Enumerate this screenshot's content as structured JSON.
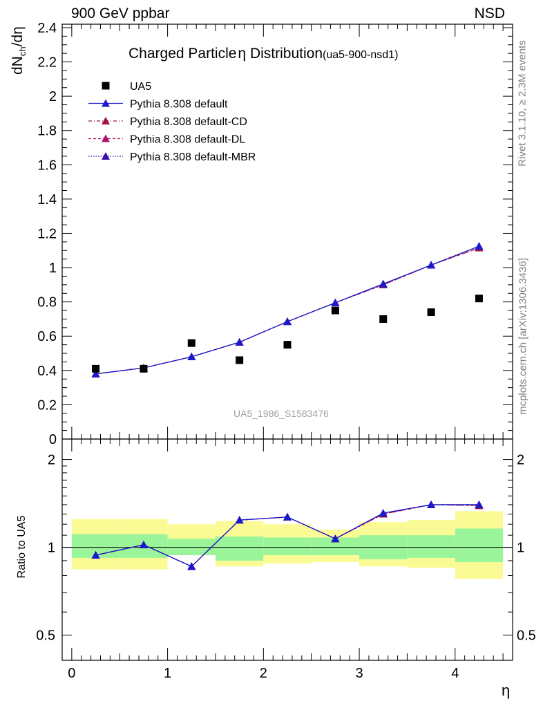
{
  "header": {
    "left": "900 GeV ppbar",
    "right": "NSD"
  },
  "title": {
    "main": "Charged Particle",
    "eta": "η",
    "rest": "Distribution",
    "tag": "(ua5-900-nsd1)"
  },
  "ylabel_top": {
    "dn": "dN",
    "sub": "ch",
    "rest": "/dη"
  },
  "ylabel_bottom": "Ratio to UA5",
  "xlabel": "η",
  "side_text": {
    "rivet": "Rivet 3.1.10, ≥ 2.3M events",
    "mcplots": "mcplots.cern.ch [arXiv:1306.3436]"
  },
  "watermark": "UA5_1986_S1583476",
  "legend": [
    {
      "label": "UA5",
      "marker": "square",
      "color": "#000000",
      "line": "none"
    },
    {
      "label": "Pythia 8.308 default",
      "marker": "triangle",
      "color": "#1a1acc",
      "line": "solid"
    },
    {
      "label": "Pythia 8.308 default-CD",
      "marker": "triangle",
      "color": "#a01040",
      "line": "dashdot"
    },
    {
      "label": "Pythia 8.308 default-DL",
      "marker": "triangle",
      "color": "#b0106a",
      "line": "dashed"
    },
    {
      "label": "Pythia 8.308 default-MBR",
      "marker": "triangle",
      "color": "#3a10b0",
      "line": "dotted"
    }
  ],
  "chart_data": [
    {
      "type": "scatter",
      "panel": "main",
      "xlim": [
        -0.1,
        4.6
      ],
      "ylim": [
        0,
        2.42
      ],
      "yticks": [
        0,
        0.2,
        0.4,
        0.6,
        0.8,
        1,
        1.2,
        1.4,
        1.6,
        1.8,
        2,
        2.2,
        2.4
      ],
      "ytick_labels": [
        "0",
        "0.2",
        "0.4",
        "0.6",
        "0.8",
        "1",
        "1.2",
        "1.4",
        "1.6",
        "1.8",
        "2",
        "2.2",
        "2.4"
      ],
      "x": [
        0.25,
        0.75,
        1.25,
        1.75,
        2.25,
        2.75,
        3.25,
        3.75,
        4.25
      ],
      "series": [
        {
          "name": "UA5",
          "values": [
            0.41,
            0.41,
            0.56,
            0.46,
            0.55,
            0.75,
            0.7,
            0.74,
            0.82
          ]
        },
        {
          "name": "Pythia 8.308 default",
          "values": [
            0.38,
            0.415,
            0.48,
            0.565,
            0.685,
            0.795,
            0.905,
            1.015,
            1.125
          ]
        },
        {
          "name": "Pythia 8.308 default-CD",
          "values": [
            0.38,
            0.415,
            0.48,
            0.565,
            0.685,
            0.795,
            0.9,
            1.015,
            1.115
          ]
        },
        {
          "name": "Pythia 8.308 default-DL",
          "values": [
            0.38,
            0.415,
            0.48,
            0.565,
            0.685,
            0.795,
            0.9,
            1.015,
            1.115
          ]
        },
        {
          "name": "Pythia 8.308 default-MBR",
          "values": [
            0.38,
            0.415,
            0.48,
            0.565,
            0.685,
            0.795,
            0.905,
            1.015,
            1.125
          ]
        }
      ]
    },
    {
      "type": "scatter",
      "panel": "ratio",
      "xlim": [
        -0.1,
        4.6
      ],
      "ylim": [
        0.41,
        2.35
      ],
      "log_y": true,
      "yticks": [
        0.5,
        1,
        2
      ],
      "ytick_labels": [
        "0.5",
        "1",
        "2"
      ],
      "xticks": [
        0,
        1,
        2,
        3,
        4
      ],
      "xtick_labels": [
        "0",
        "1",
        "2",
        "3",
        "4"
      ],
      "x": [
        0.25,
        0.75,
        1.25,
        1.75,
        2.25,
        2.75,
        3.25,
        3.75,
        4.25
      ],
      "bin_edges": [
        0,
        0.5,
        1,
        1.5,
        2,
        2.5,
        3,
        3.5,
        4,
        4.5
      ],
      "band_inner": [
        [
          0.92,
          1.11
        ],
        [
          0.92,
          1.11
        ],
        [
          0.94,
          1.07
        ],
        [
          0.9,
          1.09
        ],
        [
          0.94,
          1.08
        ],
        [
          0.94,
          1.08
        ],
        [
          0.91,
          1.1
        ],
        [
          0.92,
          1.1
        ],
        [
          0.89,
          1.16
        ]
      ],
      "band_outer": [
        [
          0.84,
          1.25
        ],
        [
          0.84,
          1.25
        ],
        [
          0.94,
          1.2
        ],
        [
          0.86,
          1.23
        ],
        [
          0.88,
          1.2
        ],
        [
          0.89,
          1.15
        ],
        [
          0.86,
          1.22
        ],
        [
          0.85,
          1.24
        ],
        [
          0.78,
          1.33
        ]
      ],
      "series": [
        {
          "name": "Pythia 8.308 default",
          "values": [
            0.94,
            1.02,
            0.86,
            1.24,
            1.27,
            1.07,
            1.31,
            1.4,
            1.4
          ]
        },
        {
          "name": "Pythia 8.308 default-CD",
          "values": [
            0.94,
            1.02,
            0.86,
            1.24,
            1.27,
            1.07,
            1.3,
            1.4,
            1.39
          ]
        },
        {
          "name": "Pythia 8.308 default-DL",
          "values": [
            0.94,
            1.02,
            0.86,
            1.24,
            1.27,
            1.07,
            1.3,
            1.4,
            1.39
          ]
        },
        {
          "name": "Pythia 8.308 default-MBR",
          "values": [
            0.94,
            1.02,
            0.86,
            1.24,
            1.27,
            1.07,
            1.31,
            1.4,
            1.4
          ]
        }
      ]
    }
  ],
  "colors": {
    "band_inner": "#9af59a",
    "band_outer": "#fbfb96"
  }
}
